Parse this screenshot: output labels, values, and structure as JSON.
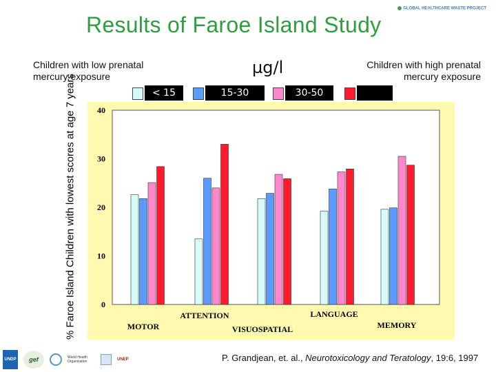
{
  "header": {
    "title": "Results of Faroe Island Study",
    "brand": "GLOBAL HEALTHCARE WASTE PROJECT",
    "caption_left": "Children with low prenatal mercury exposure",
    "caption_right": "Children with high prenatal mercury exposure",
    "unit": "µg/l"
  },
  "legend": [
    {
      "label": "< 15",
      "color": "#d7fbf6"
    },
    {
      "label": "15-30",
      "color": "#5b9bff"
    },
    {
      "label": "30-50",
      "color": "#ff88cc"
    },
    {
      "label": "",
      "color": "#ff1a2e"
    }
  ],
  "chart_data": {
    "type": "bar",
    "title": "",
    "ylabel": "% Faroe Island Children with lowest scores at age 7 years",
    "xlabel": "",
    "ylim": [
      0,
      40
    ],
    "yticks": [
      0,
      10,
      20,
      30,
      40
    ],
    "grid": false,
    "categories": [
      "MOTOR",
      "ATTENTION",
      "VISUOSPATIAL",
      "LANGUAGE",
      "MEMORY"
    ],
    "series": [
      {
        "name": "< 15",
        "color": "#d7fbf6",
        "values": [
          22.6,
          13.5,
          21.8,
          19.2,
          19.6
        ]
      },
      {
        "name": "15-30",
        "color": "#5b9bff",
        "values": [
          21.8,
          26.0,
          22.9,
          23.8,
          19.9
        ]
      },
      {
        "name": "30-50",
        "color": "#ff88cc",
        "values": [
          25.1,
          24.0,
          26.8,
          27.3,
          30.5
        ]
      },
      {
        "name": "",
        "color": "#ff1a2e",
        "values": [
          28.4,
          33.0,
          25.9,
          27.9,
          28.7
        ]
      }
    ]
  },
  "footer": {
    "author": "P. Grandjean, et. al., ",
    "journal": "Neurotoxicology and Teratology",
    "issue": ", 19:6, 1997"
  },
  "logos": {
    "undp": "UNDP",
    "gef": "gef",
    "who": "World Health Organization",
    "unep": "UNEP"
  }
}
